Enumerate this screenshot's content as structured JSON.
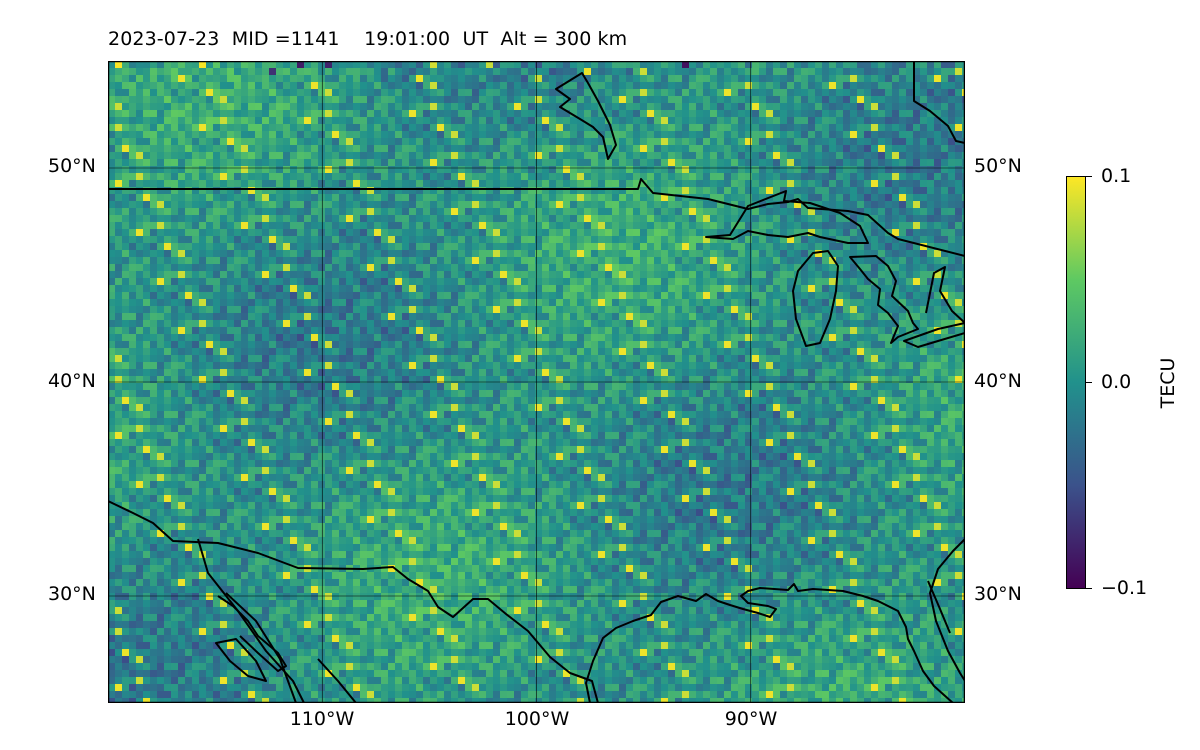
{
  "title": "2023-07-23  MID =1141    19:01:00  UT  Alt = 300 km",
  "map": {
    "projection": "equirectangular",
    "lon_range": [
      -120,
      -80
    ],
    "lat_range": [
      25,
      55
    ],
    "parameter": "TEC residual (dTEC)",
    "grid": true,
    "lat_ticks": [
      {
        "value": 50,
        "label": "50°N"
      },
      {
        "value": 40,
        "label": "40°N"
      },
      {
        "value": 30,
        "label": "30°N"
      }
    ],
    "lon_ticks": [
      {
        "value": -110,
        "label": "110°W"
      },
      {
        "value": -100,
        "label": "100°W"
      },
      {
        "value": -90,
        "label": "90°W"
      }
    ]
  },
  "colorbar": {
    "label": "TECU",
    "colormap": "viridis",
    "min": -0.1,
    "max": 0.1,
    "ticks": [
      {
        "value": 0.1,
        "label": "0.1"
      },
      {
        "value": 0.0,
        "label": "0.0"
      },
      {
        "value": -0.1,
        "label": "−0.1"
      }
    ],
    "stops": [
      "#440154",
      "#3b528b",
      "#21918c",
      "#5ec962",
      "#fde725"
    ]
  }
}
